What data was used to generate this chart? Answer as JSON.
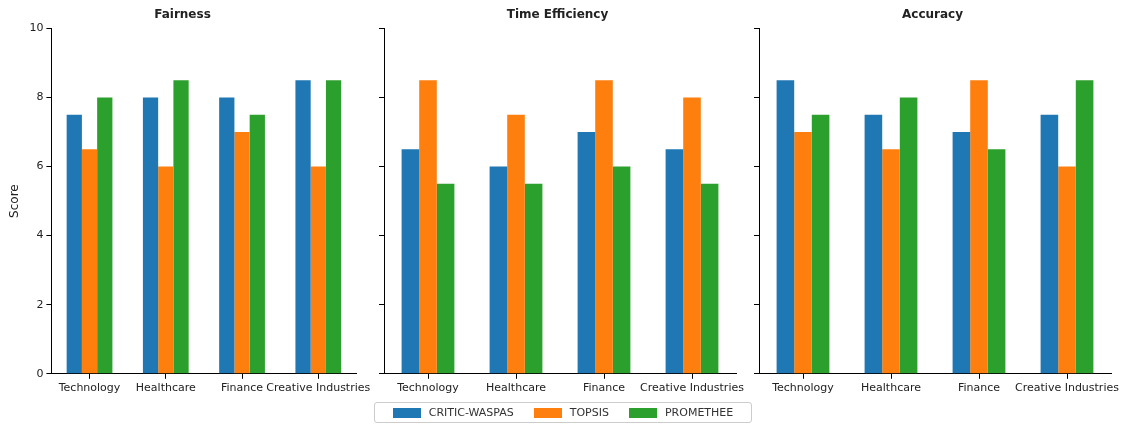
{
  "chart_data": [
    {
      "type": "bar",
      "title": "Fairness",
      "ylabel": "Score",
      "categories": [
        "Technology",
        "Healthcare",
        "Finance",
        "Creative Industries"
      ],
      "ylim": [
        0,
        10
      ],
      "yticks": [
        0,
        2,
        4,
        6,
        8,
        10
      ],
      "grid": false,
      "legend": "bottom",
      "series": [
        {
          "name": "CRITIC-WASPAS",
          "color": "#1f77b4",
          "values": [
            7.5,
            8,
            8,
            8.5
          ]
        },
        {
          "name": "TOPSIS",
          "color": "#ff7f0e",
          "values": [
            6.5,
            6,
            7,
            6
          ]
        },
        {
          "name": "PROMETHEE",
          "color": "#2ca02c",
          "values": [
            8,
            8.5,
            7.5,
            8.5
          ]
        }
      ]
    },
    {
      "type": "bar",
      "title": "Time Efficiency",
      "categories": [
        "Technology",
        "Healthcare",
        "Finance",
        "Creative Industries"
      ],
      "ylim": [
        0,
        10
      ],
      "yticks": [
        0,
        2,
        4,
        6,
        8,
        10
      ],
      "grid": false,
      "legend": "bottom",
      "tick_labels": "x",
      "series": [
        {
          "name": "CRITIC-WASPAS",
          "color": "#1f77b4",
          "values": [
            6.5,
            6,
            7,
            6.5
          ]
        },
        {
          "name": "TOPSIS",
          "color": "#ff7f0e",
          "values": [
            8.5,
            7.5,
            8.5,
            8
          ]
        },
        {
          "name": "PROMETHEE",
          "color": "#2ca02c",
          "values": [
            5.5,
            5.5,
            6,
            5.5
          ]
        }
      ]
    },
    {
      "type": "bar",
      "title": "Accuracy",
      "categories": [
        "Technology",
        "Healthcare",
        "Finance",
        "Creative Industries"
      ],
      "ylim": [
        0,
        10
      ],
      "yticks": [
        0,
        2,
        4,
        6,
        8,
        10
      ],
      "grid": false,
      "legend": "bottom",
      "tick_labels": "x",
      "series": [
        {
          "name": "CRITIC-WASPAS",
          "color": "#1f77b4",
          "values": [
            8.5,
            7.5,
            7,
            7.5
          ]
        },
        {
          "name": "TOPSIS",
          "color": "#ff7f0e",
          "values": [
            7,
            6.5,
            8.5,
            6
          ]
        },
        {
          "name": "PROMETHEE",
          "color": "#2ca02c",
          "values": [
            7.5,
            8,
            6.5,
            8.5
          ]
        }
      ]
    }
  ]
}
